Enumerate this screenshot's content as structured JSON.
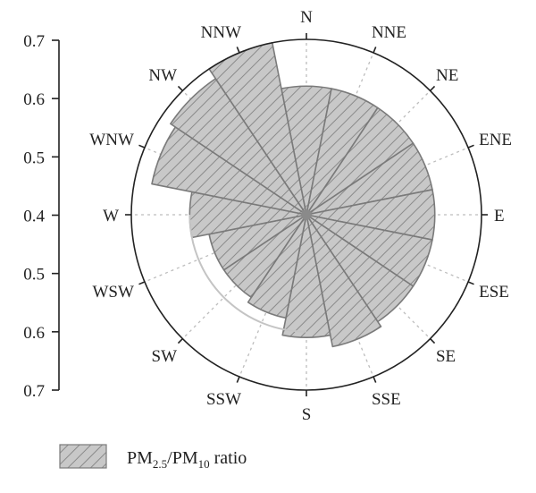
{
  "chart_data": {
    "type": "polar-bar",
    "radial_axis": {
      "ticks": [
        "0.7",
        "0.6",
        "0.5",
        "0.4",
        "0.5",
        "0.6",
        "0.7"
      ],
      "range": [
        0.4,
        0.7
      ]
    },
    "directions": [
      "N",
      "NNE",
      "NE",
      "ENE",
      "E",
      "ESE",
      "SE",
      "SSE",
      "S",
      "SSW",
      "SW",
      "WSW",
      "W",
      "WNW",
      "NW",
      "NNW"
    ],
    "series": [
      {
        "name_parts": [
          "PM",
          "2.5",
          "/PM",
          "10",
          " ratio"
        ],
        "values": [
          0.62,
          0.62,
          0.62,
          0.62,
          0.62,
          0.62,
          0.62,
          0.63,
          0.61,
          0.58,
          0.57,
          0.57,
          0.6,
          0.67,
          0.68,
          0.7
        ]
      }
    ],
    "legend_position": "bottom-left",
    "colors": {
      "bar_fill": "#c8c8c8",
      "bar_stroke": "#7a7a7a",
      "hatch": "#8a8a8a",
      "axis": "#222222",
      "grid": "#bdbdbd"
    }
  }
}
